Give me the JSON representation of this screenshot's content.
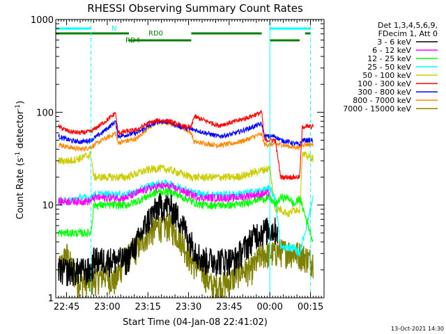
{
  "chart_data": {
    "type": "line",
    "title": "RHESSI Observing Summary Count Rates",
    "xlabel": "Start Time (04-Jan-08 22:41:02)",
    "ylabel_main": "Count Rate (s",
    "ylabel_sup": "-1",
    "ylabel_mid": " detector",
    "ylabel_sup2": "-1",
    "ylabel_end": ")",
    "yscale": "log",
    "ylim": [
      1,
      1000
    ],
    "xlim_min": [
      0,
      99
    ],
    "x_ticks": [
      {
        "min": 4,
        "label": "22:45"
      },
      {
        "min": 19,
        "label": "23:00"
      },
      {
        "min": 34,
        "label": "23:15"
      },
      {
        "min": 49,
        "label": "23:30"
      },
      {
        "min": 64,
        "label": "23:45"
      },
      {
        "min": 79,
        "label": "00:00"
      },
      {
        "min": 94,
        "label": "00:15"
      }
    ],
    "y_ticks": [
      {
        "value": 1,
        "label": "1"
      },
      {
        "value": 10,
        "label": "10"
      },
      {
        "value": 100,
        "label": "100"
      },
      {
        "value": 1000,
        "label": "1000"
      }
    ],
    "legend_header": [
      "Det 1,3,4,5,6,9,",
      "FDecim 1, Att 0"
    ],
    "legend_position": "right",
    "series": [
      {
        "name": "3 - 6 keV",
        "color": "#000000",
        "points": [
          [
            1,
            2
          ],
          [
            13,
            2
          ],
          [
            14,
            2.6
          ],
          [
            26,
            2.6
          ],
          [
            30,
            4
          ],
          [
            34,
            7
          ],
          [
            38,
            10
          ],
          [
            42,
            10
          ],
          [
            46,
            7
          ],
          [
            50,
            4
          ],
          [
            54,
            2.6
          ],
          [
            66,
            2.6
          ],
          [
            70,
            3.6
          ],
          [
            74,
            5
          ],
          [
            78,
            5.5
          ],
          [
            82,
            5.5
          ]
        ]
      },
      {
        "name": "6 - 12 keV",
        "color": "#ff00ff",
        "points": [
          [
            1,
            11
          ],
          [
            13,
            11
          ],
          [
            14,
            12
          ],
          [
            26,
            12
          ],
          [
            30,
            13.5
          ],
          [
            34,
            15
          ],
          [
            38,
            16
          ],
          [
            42,
            16
          ],
          [
            46,
            14.5
          ],
          [
            50,
            13
          ],
          [
            54,
            12
          ],
          [
            66,
            12
          ],
          [
            70,
            12.5
          ],
          [
            74,
            13
          ],
          [
            79,
            13.5
          ]
        ]
      },
      {
        "name": "12 - 25 keV",
        "color": "#00ff00",
        "points": [
          [
            1,
            5
          ],
          [
            13,
            5
          ],
          [
            14,
            10
          ],
          [
            26,
            10
          ],
          [
            30,
            11
          ],
          [
            34,
            12.5
          ],
          [
            38,
            14
          ],
          [
            42,
            14
          ],
          [
            46,
            12.5
          ],
          [
            50,
            11
          ],
          [
            54,
            10
          ],
          [
            66,
            10
          ],
          [
            70,
            10.5
          ],
          [
            74,
            11.5
          ],
          [
            79,
            12
          ],
          [
            81,
            10
          ],
          [
            83,
            12
          ],
          [
            86,
            12
          ],
          [
            88,
            10
          ],
          [
            90,
            12
          ],
          [
            95,
            4
          ]
        ]
      },
      {
        "name": "25 - 50 keV",
        "color": "#00ffff",
        "points": [
          [
            1,
            11
          ],
          [
            5,
            11
          ],
          [
            9,
            12
          ],
          [
            13,
            12
          ],
          [
            14,
            13
          ],
          [
            26,
            13
          ],
          [
            30,
            14
          ],
          [
            34,
            16
          ],
          [
            38,
            17
          ],
          [
            42,
            17
          ],
          [
            46,
            15.5
          ],
          [
            50,
            14
          ],
          [
            54,
            13
          ],
          [
            66,
            13
          ],
          [
            70,
            13.5
          ],
          [
            74,
            14
          ],
          [
            79,
            15
          ],
          [
            81,
            12
          ],
          [
            83,
            3.5
          ],
          [
            88,
            3.5
          ],
          [
            90,
            3
          ],
          [
            95,
            12
          ]
        ]
      },
      {
        "name": "50 - 100 keV",
        "color": "#cccc00",
        "points": [
          [
            1,
            30
          ],
          [
            5,
            30
          ],
          [
            9,
            32
          ],
          [
            13,
            35
          ],
          [
            14,
            20
          ],
          [
            26,
            20
          ],
          [
            30,
            22
          ],
          [
            34,
            24
          ],
          [
            38,
            25
          ],
          [
            42,
            24
          ],
          [
            46,
            22
          ],
          [
            50,
            20
          ],
          [
            54,
            20
          ],
          [
            66,
            20
          ],
          [
            70,
            21
          ],
          [
            74,
            23
          ],
          [
            79,
            25
          ],
          [
            81,
            9
          ],
          [
            83,
            9
          ],
          [
            86,
            8
          ],
          [
            88,
            9
          ],
          [
            90,
            9
          ],
          [
            91,
            35
          ],
          [
            95,
            32
          ]
        ]
      },
      {
        "name": "100 - 300 keV",
        "color": "#ff0000",
        "points": [
          [
            1,
            70
          ],
          [
            5,
            62
          ],
          [
            9,
            60
          ],
          [
            13,
            62
          ],
          [
            17,
            75
          ],
          [
            21,
            92
          ],
          [
            22,
            100
          ],
          [
            23,
            60
          ],
          [
            30,
            65
          ],
          [
            34,
            76
          ],
          [
            38,
            82
          ],
          [
            42,
            80
          ],
          [
            46,
            72
          ],
          [
            50,
            68
          ],
          [
            51,
            90
          ],
          [
            60,
            72
          ],
          [
            65,
            78
          ],
          [
            70,
            86
          ],
          [
            74,
            95
          ],
          [
            76,
            100
          ],
          [
            77,
            50
          ],
          [
            81,
            50
          ],
          [
            83,
            20
          ],
          [
            86,
            20
          ],
          [
            88,
            20
          ],
          [
            90,
            20
          ],
          [
            91,
            70
          ],
          [
            95,
            70
          ]
        ]
      },
      {
        "name": "300 - 800 keV",
        "color": "#0000ff",
        "points": [
          [
            1,
            55
          ],
          [
            5,
            50
          ],
          [
            9,
            48
          ],
          [
            13,
            50
          ],
          [
            17,
            60
          ],
          [
            21,
            75
          ],
          [
            22,
            80
          ],
          [
            23,
            55
          ],
          [
            30,
            60
          ],
          [
            34,
            70
          ],
          [
            38,
            80
          ],
          [
            42,
            78
          ],
          [
            46,
            70
          ],
          [
            50,
            65
          ],
          [
            51,
            65
          ],
          [
            60,
            55
          ],
          [
            65,
            58
          ],
          [
            70,
            65
          ],
          [
            74,
            72
          ],
          [
            76,
            75
          ],
          [
            77,
            55
          ],
          [
            81,
            55
          ],
          [
            83,
            50
          ],
          [
            86,
            48
          ],
          [
            88,
            46
          ],
          [
            90,
            45
          ],
          [
            91,
            50
          ],
          [
            95,
            50
          ]
        ]
      },
      {
        "name": "800 - 7000 keV",
        "color": "#ff8800",
        "points": [
          [
            1,
            45
          ],
          [
            5,
            42
          ],
          [
            9,
            40
          ],
          [
            13,
            42
          ],
          [
            17,
            50
          ],
          [
            21,
            57
          ],
          [
            22,
            60
          ],
          [
            23,
            47
          ],
          [
            30,
            52
          ],
          [
            34,
            68
          ],
          [
            38,
            78
          ],
          [
            42,
            76
          ],
          [
            46,
            70
          ],
          [
            50,
            60
          ],
          [
            51,
            48
          ],
          [
            60,
            44
          ],
          [
            65,
            46
          ],
          [
            70,
            50
          ],
          [
            74,
            56
          ],
          [
            76,
            58
          ],
          [
            77,
            45
          ],
          [
            81,
            45
          ],
          [
            83,
            45
          ],
          [
            86,
            43
          ],
          [
            88,
            42
          ],
          [
            90,
            42
          ],
          [
            91,
            45
          ],
          [
            95,
            45
          ]
        ]
      },
      {
        "name": "7000 - 15000 keV",
        "color": "#808000",
        "points": [
          [
            1,
            2
          ],
          [
            4,
            3
          ],
          [
            8,
            1.5
          ],
          [
            13,
            1.5
          ],
          [
            18,
            1.8
          ],
          [
            22,
            1.5
          ],
          [
            25,
            2.5
          ],
          [
            30,
            3.5
          ],
          [
            34,
            5
          ],
          [
            38,
            6
          ],
          [
            42,
            6
          ],
          [
            46,
            4.5
          ],
          [
            50,
            2.5
          ],
          [
            54,
            2
          ],
          [
            58,
            1.3
          ],
          [
            64,
            1.5
          ],
          [
            68,
            2
          ],
          [
            72,
            2
          ],
          [
            76,
            3
          ],
          [
            79,
            3
          ],
          [
            82,
            3.2
          ],
          [
            86,
            3.2
          ],
          [
            90,
            3
          ],
          [
            95,
            2.5
          ]
        ]
      }
    ],
    "flags": [
      {
        "label": "N",
        "color": "#00ffff",
        "segments": [
          [
            0,
            13
          ],
          [
            79,
            94
          ]
        ]
      },
      {
        "label": "RD0",
        "color": "#008000",
        "segments": [
          [
            0,
            27
          ],
          [
            50,
            76
          ],
          [
            92,
            94
          ]
        ]
      },
      {
        "label": "RD4",
        "color": "#008000",
        "segments": [
          [
            27,
            50
          ],
          [
            79,
            90
          ]
        ]
      }
    ],
    "vlines": [
      {
        "min": 13,
        "color": "#00ffff",
        "style": "dashed"
      },
      {
        "min": 79,
        "color": "#00ffff",
        "style": "solid"
      },
      {
        "min": 94,
        "color": "#00ffff",
        "style": "dashed"
      }
    ],
    "grid": false
  },
  "timestamp": "13-Oct-2021 14:30"
}
